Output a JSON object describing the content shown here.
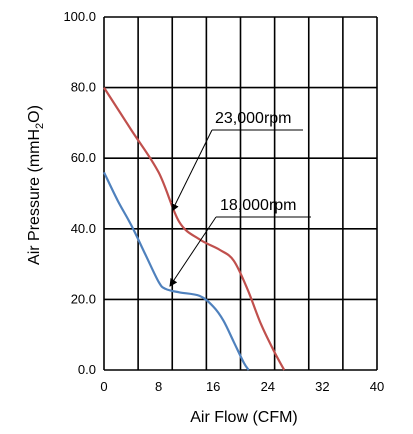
{
  "chart_data": {
    "type": "line",
    "xlabel": "Air Flow (CFM)",
    "ylabel_main": "Air Pressure (mmH",
    "ylabel_sub": "2",
    "ylabel_end": "O)",
    "xlim": [
      0,
      40
    ],
    "ylim": [
      0,
      100
    ],
    "xticks": [
      0,
      8,
      16,
      24,
      32,
      40
    ],
    "xtick_labels": [
      "0",
      "8",
      "16",
      "24",
      "32",
      "40"
    ],
    "yticks": [
      0,
      20,
      40,
      60,
      80,
      100
    ],
    "ytick_labels": [
      "0.0",
      "20.0",
      "40.0",
      "60.0",
      "80.0",
      "100.0"
    ],
    "xgrid_step": 5,
    "grid": true,
    "series": [
      {
        "name": "23,000rpm",
        "color": "#c0504d",
        "x": [
          0,
          4,
          8,
          11,
          14,
          17,
          19,
          21,
          23,
          25,
          26.4
        ],
        "y": [
          80,
          68,
          56,
          42,
          37,
          34,
          31,
          23,
          13,
          5,
          0
        ]
      },
      {
        "name": "18,000rpm",
        "color": "#4f81bd",
        "x": [
          0,
          2,
          4,
          6,
          8,
          9,
          11,
          14,
          16,
          17.5,
          19,
          20.5,
          21.2
        ],
        "y": [
          56,
          48,
          41,
          33,
          25,
          23,
          22,
          21,
          18,
          14,
          8,
          2,
          0
        ]
      }
    ],
    "annotations": [
      {
        "text": "23,000rpm",
        "series": 0
      },
      {
        "text": "18,000rpm",
        "series": 1
      }
    ]
  }
}
